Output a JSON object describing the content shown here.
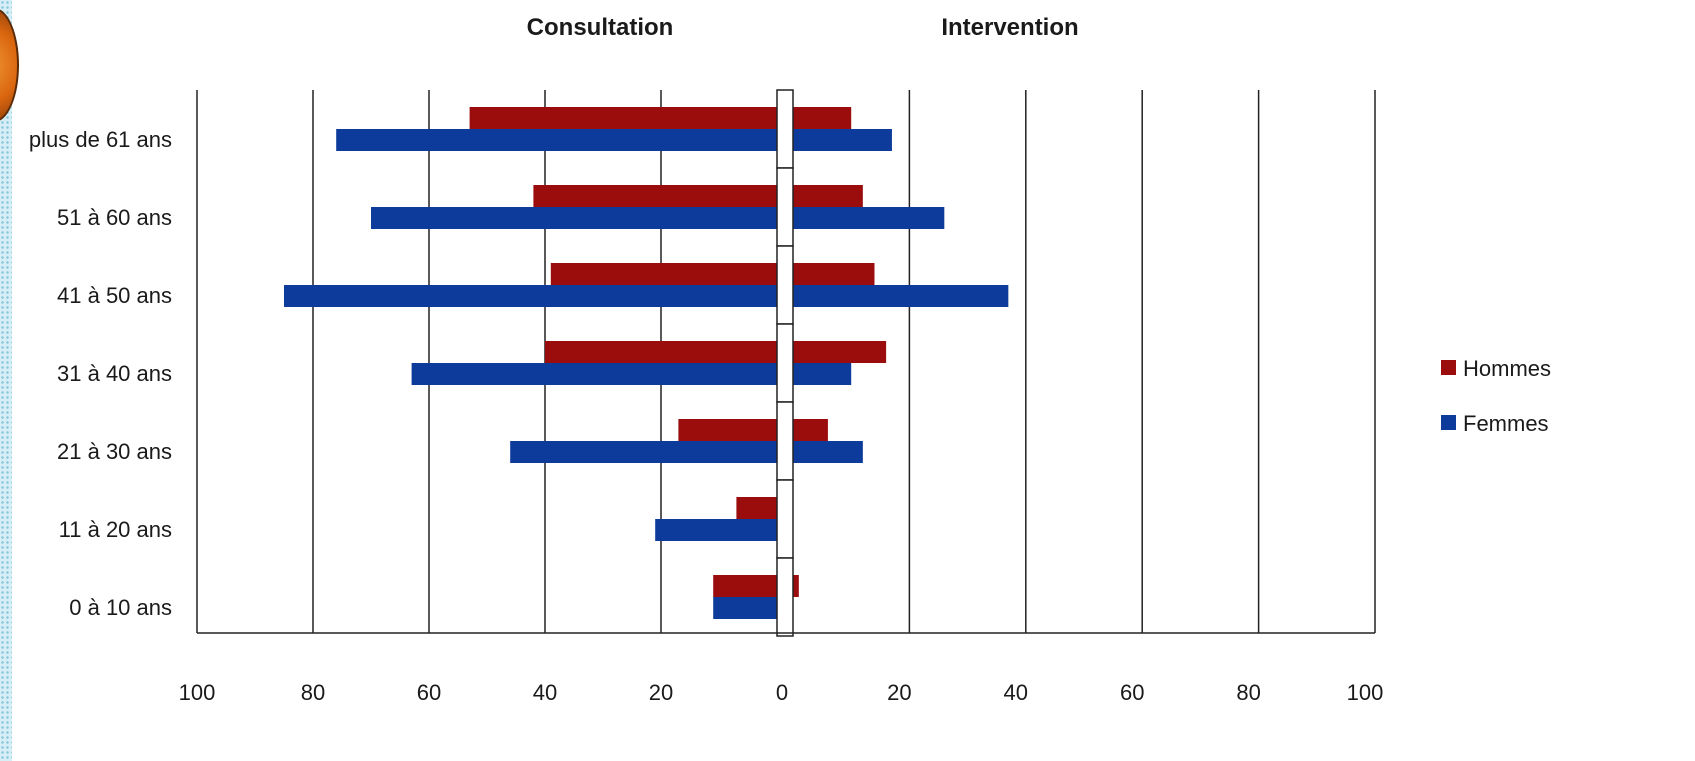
{
  "chart_data": {
    "type": "bar",
    "orientation": "horizontal-butterfly",
    "panels": [
      "Consultation",
      "Intervention"
    ],
    "categories": [
      "plus de 61 ans",
      "51 à 60 ans",
      "41 à 50 ans",
      "31 à 40 ans",
      "21 à 30 ans",
      "11 à 20 ans",
      "0 à 10 ans"
    ],
    "series": [
      {
        "name": "Hommes",
        "color": "#9b0d0d",
        "consultation": [
          53,
          42,
          39,
          40,
          17,
          7,
          11
        ],
        "intervention": [
          10,
          12,
          14,
          16,
          6,
          0,
          1
        ]
      },
      {
        "name": "Femmes",
        "color": "#0d3b9b",
        "consultation": [
          76,
          70,
          85,
          63,
          46,
          21,
          11
        ],
        "intervention": [
          17,
          26,
          37,
          10,
          12,
          0,
          0
        ]
      }
    ],
    "x_ticks_left": [
      "100",
      "80",
      "60",
      "40",
      "20",
      "0"
    ],
    "x_ticks_right": [
      "20",
      "40",
      "60",
      "80",
      "100"
    ],
    "xlim": [
      0,
      100
    ],
    "grid": true,
    "legend_position": "right"
  },
  "icons": {
    "decoration": "orange-circle-logo"
  }
}
